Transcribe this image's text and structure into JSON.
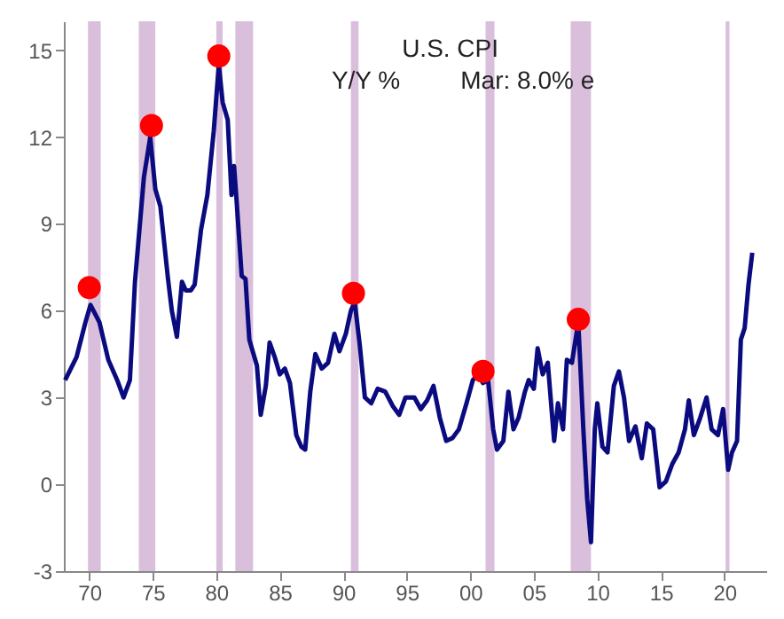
{
  "chart_data": {
    "type": "line",
    "title": "U.S. CPI",
    "annotations": [
      "Y/Y %",
      "Mar: 8.0% e"
    ],
    "series": [
      {
        "color": "#0b0b80",
        "x": [
          1968.1,
          1969.0,
          1969.7,
          1970.1,
          1970.8,
          1971.5,
          1972.2,
          1972.7,
          1973.2,
          1973.6,
          1974.3,
          1974.8,
          1975.2,
          1975.6,
          1976.2,
          1976.5,
          1976.9,
          1977.3,
          1977.6,
          1978.0,
          1978.3,
          1978.8,
          1979.3,
          1979.8,
          1980.2,
          1980.5,
          1980.9,
          1981.2,
          1981.4,
          1981.6,
          1982.0,
          1982.3,
          1982.6,
          1983.2,
          1983.5,
          1983.9,
          1984.2,
          1984.6,
          1985.0,
          1985.4,
          1985.8,
          1986.3,
          1986.7,
          1987.0,
          1987.4,
          1987.8,
          1988.3,
          1988.8,
          1989.3,
          1989.7,
          1990.2,
          1990.6,
          1990.9,
          1991.3,
          1991.7,
          1992.2,
          1992.7,
          1993.3,
          1993.9,
          1994.4,
          1994.9,
          1995.6,
          1996.1,
          1996.6,
          1997.1,
          1997.6,
          1998.1,
          1998.6,
          1999.1,
          1999.7,
          2000.2,
          2000.6,
          2001.0,
          2001.4,
          2001.8,
          2002.1,
          2002.6,
          2003.0,
          2003.4,
          2003.8,
          2004.3,
          2004.6,
          2005.0,
          2005.3,
          2005.7,
          2006.1,
          2006.6,
          2006.9,
          2007.3,
          2007.6,
          2008.0,
          2008.5,
          2008.9,
          2009.2,
          2009.5,
          2009.8,
          2010.0,
          2010.4,
          2010.8,
          2011.3,
          2011.7,
          2012.1,
          2012.5,
          2013.0,
          2013.5,
          2013.9,
          2014.4,
          2014.9,
          2015.4,
          2015.9,
          2016.4,
          2016.9,
          2017.2,
          2017.6,
          2018.1,
          2018.6,
          2019.0,
          2019.5,
          2019.9,
          2020.3,
          2020.6,
          2021.0,
          2021.3,
          2021.6,
          2021.9,
          2022.2
        ],
        "values": [
          3.6,
          4.4,
          5.6,
          6.2,
          5.6,
          4.3,
          3.6,
          3.0,
          3.6,
          7.0,
          10.6,
          12.0,
          10.2,
          9.6,
          7.1,
          6.0,
          5.1,
          7.0,
          6.7,
          6.7,
          6.9,
          8.8,
          10.0,
          12.2,
          14.5,
          13.2,
          12.6,
          10.0,
          11.0,
          9.8,
          7.2,
          7.1,
          5.0,
          4.1,
          2.4,
          3.4,
          4.9,
          4.4,
          3.8,
          4.0,
          3.5,
          1.7,
          1.3,
          1.2,
          3.2,
          4.5,
          4.0,
          4.2,
          5.2,
          4.6,
          5.2,
          6.0,
          6.3,
          4.8,
          3.0,
          2.8,
          3.3,
          3.2,
          2.7,
          2.4,
          3.0,
          3.0,
          2.6,
          2.9,
          3.4,
          2.3,
          1.5,
          1.6,
          1.9,
          2.8,
          3.6,
          3.8,
          3.5,
          3.6,
          1.9,
          1.2,
          1.5,
          3.2,
          1.9,
          2.3,
          3.2,
          3.6,
          3.3,
          4.7,
          3.8,
          4.2,
          1.5,
          2.8,
          1.9,
          4.3,
          4.2,
          5.6,
          1.9,
          -0.5,
          -2.0,
          1.9,
          2.8,
          1.3,
          1.1,
          3.4,
          3.9,
          3.0,
          1.5,
          2.0,
          0.9,
          2.1,
          1.9,
          -0.1,
          0.1,
          0.7,
          1.1,
          1.9,
          2.9,
          1.7,
          2.3,
          3.0,
          1.9,
          1.7,
          2.6,
          0.5,
          1.1,
          1.5,
          5.0,
          5.4,
          6.9,
          8.0
        ]
      },
      {
        "type": "scatter",
        "color": "#ff0000",
        "marker": "circle",
        "x": [
          1970.0,
          1974.9,
          1980.2,
          1990.8,
          2001.0,
          2008.5
        ],
        "values": [
          6.8,
          12.4,
          14.8,
          6.6,
          3.9,
          5.7
        ]
      }
    ],
    "bands": [
      {
        "axis": "x",
        "from": 1969.9,
        "to": 1970.9,
        "color": "#d9bfdb"
      },
      {
        "axis": "x",
        "from": 1973.9,
        "to": 1975.2,
        "color": "#d9bfdb"
      },
      {
        "axis": "x",
        "from": 1980.0,
        "to": 1980.5,
        "color": "#d9bfdb"
      },
      {
        "axis": "x",
        "from": 1981.5,
        "to": 1982.9,
        "color": "#d9bfdb"
      },
      {
        "axis": "x",
        "from": 1990.6,
        "to": 1991.2,
        "color": "#d9bfdb"
      },
      {
        "axis": "x",
        "from": 2001.2,
        "to": 2001.9,
        "color": "#d9bfdb"
      },
      {
        "axis": "x",
        "from": 2007.9,
        "to": 2009.5,
        "color": "#d9bfdb"
      },
      {
        "axis": "x",
        "from": 2020.1,
        "to": 2020.4,
        "color": "#d9bfdb"
      }
    ],
    "xlim": [
      1968.0,
      2023.3
    ],
    "xticks": [
      {
        "value": 1970,
        "label": "70"
      },
      {
        "value": 1975,
        "label": "75"
      },
      {
        "value": 1980,
        "label": "80"
      },
      {
        "value": 1985,
        "label": "85"
      },
      {
        "value": 1990,
        "label": "90"
      },
      {
        "value": 1995,
        "label": "95"
      },
      {
        "value": 2000,
        "label": "00"
      },
      {
        "value": 2005,
        "label": "05"
      },
      {
        "value": 2010,
        "label": "10"
      },
      {
        "value": 2015,
        "label": "15"
      },
      {
        "value": 2020,
        "label": "20"
      }
    ],
    "ylim": [
      -3,
      16
    ],
    "yticks": [
      -3,
      0,
      3,
      6,
      9,
      12,
      15
    ],
    "line_style": "solid"
  }
}
